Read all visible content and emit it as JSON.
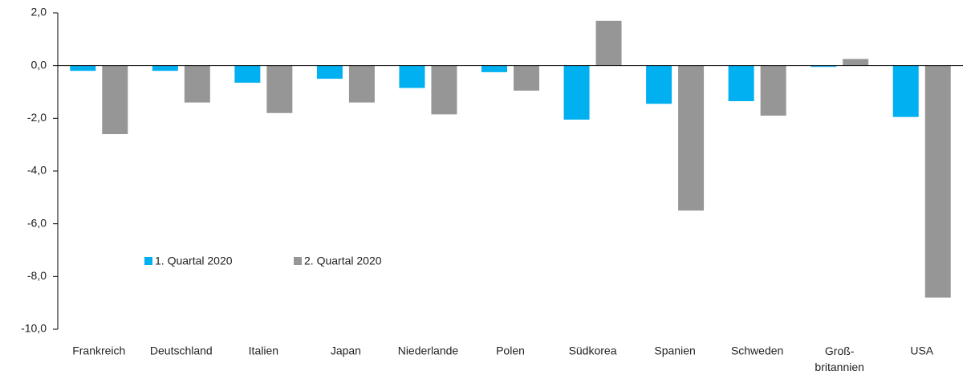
{
  "chart_data": {
    "type": "bar",
    "categories": [
      "Frankreich",
      "Deutschland",
      "Italien",
      "Japan",
      "Niederlande",
      "Polen",
      "Südkorea",
      "Spanien",
      "Schweden",
      "Groß-\nbritannien",
      "USA"
    ],
    "series": [
      {
        "name": "1. Quartal 2020",
        "color": "#00b0f0",
        "values": [
          -0.2,
          -0.2,
          -0.65,
          -0.5,
          -0.85,
          -0.25,
          -2.05,
          -1.45,
          -1.35,
          -0.05,
          -1.95
        ]
      },
      {
        "name": "2. Quartal 2020",
        "color": "#969696",
        "values": [
          -2.6,
          -1.4,
          -1.8,
          -1.4,
          -1.85,
          -0.95,
          1.7,
          -5.5,
          -1.9,
          0.25,
          -8.8
        ]
      }
    ],
    "ylim": [
      -10,
      2
    ],
    "yticks": [
      {
        "value": -10,
        "label": "-10,0"
      },
      {
        "value": -8,
        "label": "-8,0"
      },
      {
        "value": -6,
        "label": "-6,0"
      },
      {
        "value": -4,
        "label": "-4,0"
      },
      {
        "value": -2,
        "label": "-2,0"
      },
      {
        "value": 0,
        "label": "0,0"
      },
      {
        "value": 2,
        "label": "2,0"
      }
    ],
    "grid": false
  }
}
